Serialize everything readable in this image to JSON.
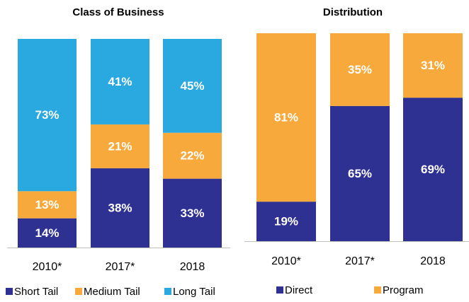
{
  "chart_data": [
    {
      "type": "bar",
      "stacked": true,
      "title": "Class of Business",
      "categories": [
        "2010*",
        "2017*",
        "2018"
      ],
      "ylim": [
        0,
        100
      ],
      "series": [
        {
          "name": "Short Tail",
          "color": "#2e3192",
          "values": [
            14,
            38,
            33
          ],
          "value_labels": [
            "14%",
            "38%",
            "33%"
          ]
        },
        {
          "name": "Medium Tail",
          "color": "#f7a93b",
          "values": [
            13,
            21,
            22
          ],
          "value_labels": [
            "13%",
            "21%",
            "22%"
          ]
        },
        {
          "name": "Long Tail",
          "color": "#29a9e0",
          "values": [
            73,
            41,
            45
          ],
          "value_labels": [
            "73%",
            "41%",
            "45%"
          ]
        }
      ]
    },
    {
      "type": "bar",
      "stacked": true,
      "title": "Distribution",
      "categories": [
        "2010*",
        "2017*",
        "2018"
      ],
      "ylim": [
        0,
        100
      ],
      "series": [
        {
          "name": "Direct",
          "color": "#2e3192",
          "values": [
            19,
            65,
            69
          ],
          "value_labels": [
            "19%",
            "65%",
            "69%"
          ]
        },
        {
          "name": "Program",
          "color": "#f7a93b",
          "values": [
            81,
            35,
            31
          ],
          "value_labels": [
            "81%",
            "35%",
            "31%"
          ]
        }
      ]
    }
  ]
}
